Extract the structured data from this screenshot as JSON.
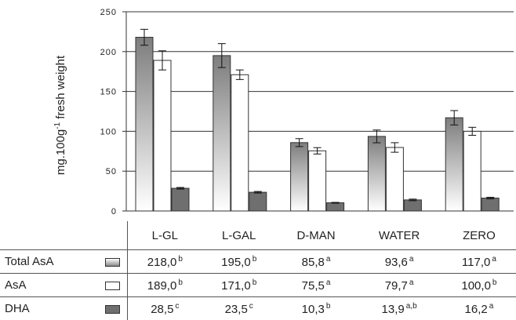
{
  "chart_data": {
    "type": "bar",
    "ylabel": "mg.100g",
    "ylabel_sup": "-1",
    "ylabel_tail": " fresh weight",
    "ylim": [
      0,
      250
    ],
    "yticks": [
      "0",
      "50",
      "100",
      "150",
      "200",
      "250"
    ],
    "grid": true,
    "categories": [
      "L-GL",
      "L-GAL",
      "D-MAN",
      "WATER",
      "ZERO"
    ],
    "series": [
      {
        "name": "Total AsA",
        "style": "gradient",
        "values": [
          218.0,
          195.0,
          85.8,
          93.6,
          117.0
        ],
        "errors": [
          10,
          15,
          5,
          8,
          9
        ],
        "labels": [
          "218,0",
          "195,0",
          "85,8",
          "93,6",
          "117,0"
        ],
        "letters": [
          "b",
          "b",
          "a",
          "a",
          "a"
        ]
      },
      {
        "name": "AsA",
        "style": "white",
        "values": [
          189.0,
          171.0,
          75.5,
          79.7,
          100.0
        ],
        "errors": [
          12,
          6,
          4,
          6,
          5
        ],
        "labels": [
          "189,0",
          "171,0",
          "75,5",
          "79,7",
          "100,0"
        ],
        "letters": [
          "b",
          "b",
          "a",
          "a",
          "b"
        ]
      },
      {
        "name": "DHA",
        "style": "dark",
        "values": [
          28.5,
          23.5,
          10.3,
          13.9,
          16.2
        ],
        "errors": [
          1,
          1,
          0.5,
          1,
          1
        ],
        "labels": [
          "28,5",
          "23,5",
          "10,3",
          "13,9",
          "16,2"
        ],
        "letters": [
          "c",
          "c",
          "b",
          "a,b",
          "a"
        ]
      }
    ]
  },
  "colors": {
    "gradient_top": "#7d7d7d",
    "gradient_bottom": "#ffffff",
    "dark": "#6f6f6f",
    "white": "#ffffff",
    "grid": "#333333"
  }
}
